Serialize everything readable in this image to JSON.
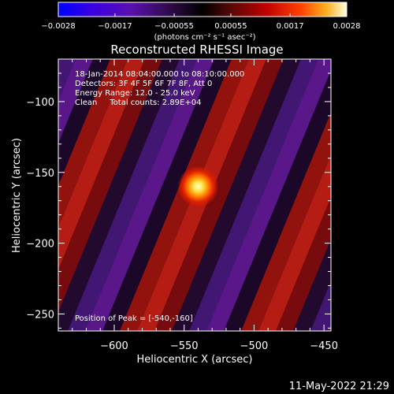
{
  "chart_data": {
    "type": "heatmap",
    "title": "Reconstructed RHESSI Image",
    "xlabel": "Heliocentric X (arcsec)",
    "ylabel": "Heliocentric Y (arcsec)",
    "xlim": [
      -640,
      -445
    ],
    "ylim": [
      -262,
      -70
    ],
    "x_ticks": [
      -600,
      -550,
      -500,
      -450
    ],
    "x_tick_labels": [
      "−600",
      "−550",
      "−500",
      "−450"
    ],
    "y_ticks": [
      -250,
      -200,
      -150,
      -100
    ],
    "y_tick_labels": [
      "−250",
      "−200",
      "−150",
      "−100"
    ],
    "colorbar": {
      "range": [
        -0.0028,
        0.0028
      ],
      "ticks": [
        -0.0028,
        -0.0017,
        -0.00055,
        0.00055,
        0.0017,
        0.0028
      ],
      "tick_labels": [
        "−0.0028",
        "−0.0017",
        "−0.00055",
        "0.00055",
        "0.0017",
        "0.0028"
      ],
      "unit_label": "(photons cm⁻² s⁻¹ asec⁻²)"
    },
    "annotations": [
      "18-Jan-2014 08:04:00.000 to 08:10:00.000",
      "Detectors: 3F 4F 5F 6F 7F 8F, Att 0",
      "Energy Range: 12.0 - 25.0 keV",
      "Clean     Total counts: 2.89E+04"
    ],
    "peak_label": "Position of Peak = [-540,-160]",
    "peak": {
      "x": -540,
      "y": -160,
      "value": 0.0028
    },
    "grid": false,
    "colors": {
      "background": "#000000",
      "axes": "#ffffff"
    }
  },
  "footer": {
    "timestamp": "11-May-2022 21:29"
  }
}
